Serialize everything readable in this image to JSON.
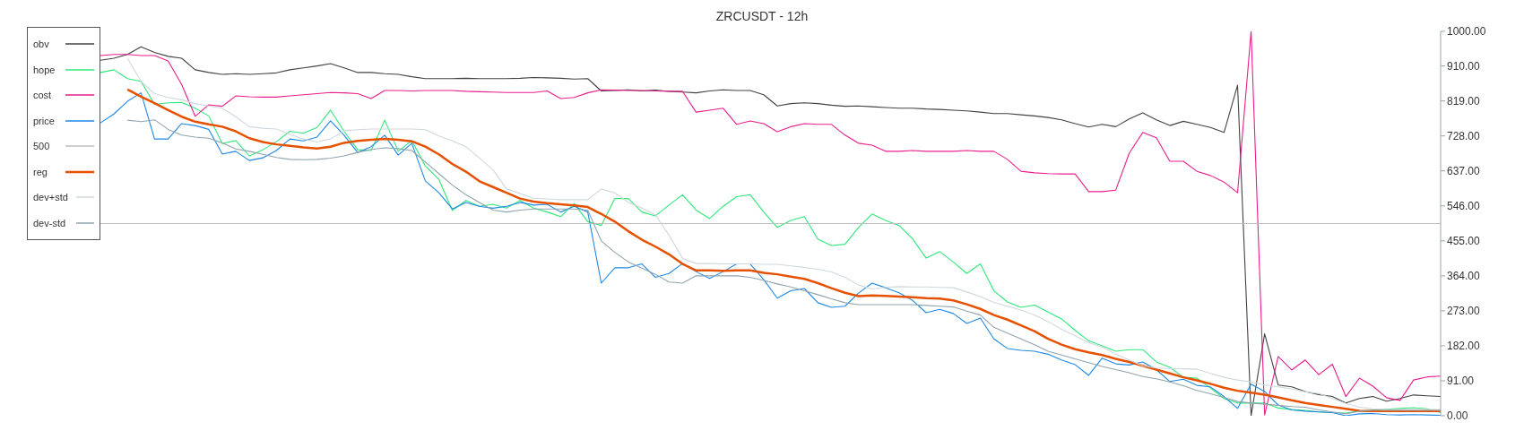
{
  "chart_data": {
    "type": "line",
    "title": "ZRCUSDT - 12h",
    "categories": [
      null,
      null,
      null,
      null,
      null,
      null,
      null,
      null,
      null,
      null,
      null,
      null,
      null,
      null,
      null,
      null,
      null,
      null,
      null,
      null,
      null,
      null,
      null,
      null,
      null,
      null,
      null,
      null,
      null,
      null,
      null,
      null,
      null,
      null,
      null,
      null,
      null,
      null,
      null,
      null,
      null,
      null,
      null,
      null,
      null,
      null,
      null,
      null,
      null,
      null,
      null,
      null,
      null,
      null,
      null,
      null,
      null,
      null,
      null,
      null,
      null,
      null,
      null,
      null,
      null,
      null,
      null,
      null,
      null,
      null,
      null,
      null,
      null,
      null,
      null,
      null,
      null,
      null,
      null,
      null,
      null,
      null,
      null,
      null,
      null,
      null,
      null,
      null,
      null,
      null,
      null,
      null,
      null,
      null,
      null,
      null,
      null,
      null,
      null,
      null
    ],
    "series": [
      {
        "name": "obv",
        "color": "#424242",
        "values": [
          925,
          930,
          940,
          960,
          945,
          935,
          930,
          900,
          893,
          888,
          890,
          888,
          890,
          892,
          900,
          905,
          910,
          916,
          905,
          893,
          893,
          890,
          888,
          882,
          877,
          877,
          877,
          878,
          877,
          877,
          877,
          878,
          880,
          879,
          878,
          876,
          877,
          845,
          846,
          848,
          845,
          847,
          844,
          842,
          840,
          845,
          848,
          846,
          846,
          835,
          806,
          812,
          814,
          812,
          808,
          805,
          806,
          804,
          802,
          800,
          800,
          798,
          797,
          795,
          793,
          790,
          786,
          786,
          783,
          780,
          776,
          770,
          760,
          751,
          758,
          752,
          772,
          788,
          770,
          755,
          766,
          758,
          750,
          737,
          860,
          0,
          213,
          80,
          75,
          63,
          55,
          50,
          33,
          45,
          50,
          38,
          45,
          54,
          52,
          50
        ]
      },
      {
        "name": "hope",
        "color": "#2ee87a",
        "values": [
          893,
          900,
          877,
          870,
          810,
          814,
          815,
          800,
          780,
          708,
          716,
          676,
          692,
          713,
          740,
          735,
          750,
          795,
          740,
          692,
          690,
          769,
          688,
          716,
          650,
          615,
          534,
          560,
          545,
          550,
          540,
          560,
          540,
          530,
          518,
          552,
          505,
          495,
          565,
          565,
          530,
          520,
          548,
          575,
          535,
          513,
          545,
          570,
          575,
          530,
          490,
          508,
          518,
          459,
          443,
          446,
          490,
          525,
          508,
          495,
          460,
          410,
          427,
          400,
          370,
          395,
          325,
          296,
          282,
          288,
          270,
          252,
          222,
          195,
          182,
          168,
          172,
          172,
          140,
          126,
          100,
          98,
          72,
          45,
          33,
          33,
          33,
          20,
          16,
          14,
          10,
          8,
          7,
          12,
          15,
          17,
          19,
          21,
          18,
          8
        ]
      },
      {
        "name": "cost",
        "color": "#e91e8c",
        "values": [
          937,
          940,
          940,
          937,
          937,
          923,
          862,
          779,
          809,
          805,
          832,
          830,
          829,
          829,
          832,
          835,
          838,
          841,
          840,
          838,
          825,
          846,
          846,
          845,
          846,
          846,
          846,
          844,
          843,
          842,
          841,
          841,
          841,
          845,
          825,
          828,
          840,
          848,
          847,
          846,
          846,
          845,
          844,
          844,
          790,
          795,
          800,
          758,
          767,
          760,
          739,
          752,
          760,
          758,
          758,
          730,
          709,
          704,
          688,
          688,
          690,
          688,
          688,
          688,
          690,
          688,
          688,
          667,
          636,
          632,
          630,
          629,
          629,
          583,
          583,
          587,
          683,
          737,
          723,
          662,
          662,
          636,
          625,
          608,
          580,
          1000,
          2,
          154,
          119,
          145,
          107,
          134,
          50,
          98,
          77,
          47,
          40,
          93,
          101,
          103
        ]
      },
      {
        "name": "price",
        "color": "#1e88e5",
        "values": [
          762,
          785,
          818,
          840,
          720,
          720,
          760,
          755,
          745,
          681,
          688,
          664,
          671,
          690,
          720,
          715,
          725,
          767,
          730,
          685,
          700,
          730,
          678,
          709,
          611,
          580,
          538,
          555,
          545,
          540,
          545,
          555,
          548,
          550,
          530,
          545,
          530,
          345,
          385,
          385,
          395,
          360,
          370,
          396,
          375,
          357,
          375,
          395,
          395,
          354,
          306,
          325,
          331,
          294,
          282,
          285,
          319,
          345,
          333,
          320,
          300,
          268,
          277,
          266,
          240,
          254,
          200,
          175,
          170,
          168,
          160,
          145,
          133,
          105,
          150,
          135,
          132,
          140,
          120,
          89,
          95,
          79,
          75,
          50,
          19,
          82,
          63,
          28,
          15,
          12,
          10,
          8,
          0,
          5,
          6,
          3,
          2,
          3,
          2,
          1
        ]
      },
      {
        "name": "500",
        "color": "#bdbdbd",
        "values": [
          500,
          500,
          500,
          500,
          500,
          500,
          500,
          500,
          500,
          500,
          500,
          500,
          500,
          500,
          500,
          500,
          500,
          500,
          500,
          500,
          500,
          500,
          500,
          500,
          500,
          500,
          500,
          500,
          500,
          500,
          500,
          500,
          500,
          500,
          500,
          500,
          500,
          500,
          500,
          500,
          500,
          500,
          500,
          500,
          500,
          500,
          500,
          500,
          500,
          500,
          500,
          500,
          500,
          500,
          500,
          500,
          500,
          500,
          500,
          500,
          500,
          500,
          500,
          500,
          500,
          500,
          500,
          500,
          500,
          500,
          500,
          500,
          500,
          500,
          500,
          500,
          500,
          500,
          500,
          500,
          500,
          500,
          500,
          500,
          500,
          500,
          500,
          500,
          500,
          500,
          500,
          500,
          500,
          500,
          500,
          500,
          500,
          500,
          500,
          500
        ]
      },
      {
        "name": "reg",
        "color": "#e65100",
        "values": [
          null,
          null,
          849,
          830,
          813,
          795,
          778,
          765,
          758,
          752,
          740,
          722,
          712,
          706,
          702,
          698,
          695,
          700,
          710,
          715,
          718,
          720,
          718,
          714,
          700,
          680,
          655,
          635,
          610,
          595,
          580,
          565,
          557,
          553,
          550,
          547,
          543,
          525,
          505,
          480,
          458,
          440,
          420,
          395,
          378,
          378,
          377,
          378,
          378,
          372,
          368,
          362,
          356,
          345,
          332,
          320,
          311,
          313,
          312,
          310,
          308,
          306,
          305,
          300,
          290,
          278,
          262,
          250,
          235,
          220,
          200,
          185,
          173,
          165,
          158,
          148,
          140,
          130,
          120,
          110,
          100,
          92,
          83,
          73,
          65,
          60,
          55,
          48,
          40,
          33,
          28,
          23,
          18,
          13,
          12,
          12,
          12,
          12,
          12,
          12
        ]
      },
      {
        "name": "dev+std",
        "color": "#cfd8dc",
        "values": [
          null,
          null,
          930,
          870,
          838,
          828,
          822,
          812,
          806,
          800,
          778,
          752,
          748,
          746,
          732,
          720,
          712,
          720,
          741,
          744,
          746,
          746,
          746,
          746,
          744,
          728,
          715,
          700,
          670,
          640,
          590,
          578,
          566,
          564,
          562,
          562,
          562,
          590,
          580,
          555,
          540,
          522,
          470,
          410,
          396,
          396,
          395,
          395,
          395,
          394,
          394,
          390,
          386,
          381,
          374,
          360,
          340,
          330,
          334,
          336,
          335,
          335,
          334,
          333,
          322,
          310,
          295,
          285,
          275,
          262,
          245,
          225,
          208,
          190,
          179,
          160,
          145,
          130,
          124,
          123,
          122,
          121,
          110,
          100,
          93,
          88,
          80,
          75,
          70,
          62,
          58,
          45,
          32,
          22,
          18,
          16,
          16,
          16,
          16,
          16
        ]
      },
      {
        "name": "dev-std",
        "color": "#90a4ae",
        "values": [
          null,
          null,
          769,
          765,
          770,
          745,
          730,
          725,
          722,
          710,
          694,
          688,
          680,
          672,
          667,
          666,
          667,
          670,
          676,
          685,
          693,
          697,
          695,
          690,
          660,
          630,
          600,
          575,
          555,
          535,
          530,
          535,
          538,
          538,
          538,
          538,
          535,
          455,
          425,
          400,
          384,
          368,
          348,
          345,
          364,
          364,
          364,
          364,
          360,
          352,
          343,
          335,
          325,
          315,
          304,
          294,
          289,
          289,
          289,
          289,
          289,
          287,
          285,
          283,
          272,
          262,
          230,
          215,
          200,
          185,
          168,
          158,
          148,
          138,
          128,
          120,
          112,
          102,
          96,
          88,
          78,
          66,
          57,
          48,
          37,
          33,
          30,
          27,
          24,
          22,
          15,
          10,
          5,
          12,
          14,
          14,
          14,
          14,
          14,
          14
        ]
      }
    ],
    "ylim": [
      0,
      1000
    ],
    "yticks": [
      {
        "value": 0,
        "label": "0.00"
      },
      {
        "value": 91,
        "label": "91.00"
      },
      {
        "value": 182,
        "label": "182.00"
      },
      {
        "value": 273,
        "label": "273.00"
      },
      {
        "value": 364,
        "label": "364.00"
      },
      {
        "value": 455,
        "label": "455.00"
      },
      {
        "value": 546,
        "label": "546.00"
      },
      {
        "value": 637,
        "label": "637.00"
      },
      {
        "value": 728,
        "label": "728.00"
      },
      {
        "value": 819,
        "label": "819.00"
      },
      {
        "value": 910,
        "label": "910.00"
      },
      {
        "value": 1000,
        "label": "1000.00"
      }
    ],
    "tick_labels": "y",
    "grid": false,
    "legend": "top left",
    "marker": "none"
  }
}
